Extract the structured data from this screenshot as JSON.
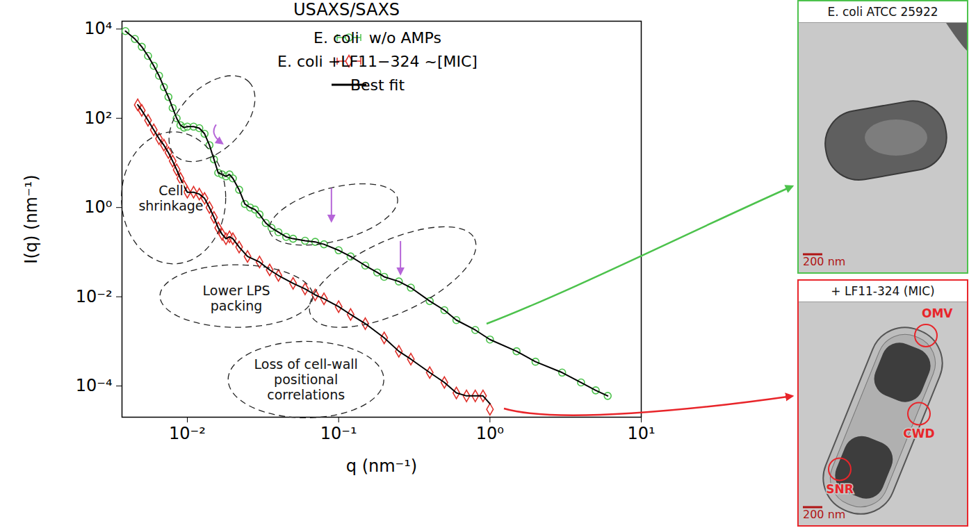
{
  "chart_data": {
    "type": "scatter",
    "title": "USAXS/SAXS",
    "x_label": "q (nm⁻¹)",
    "y_label": "I(q) (nm⁻¹)",
    "log": true,
    "grid": false,
    "legend": "upper right",
    "xlim": [
      0.0037,
      10
    ],
    "ylim": [
      2e-05,
      15000
    ],
    "xticks": [
      {
        "value": 0.01,
        "label": "10⁻²"
      },
      {
        "value": 0.1,
        "label": "10⁻¹"
      },
      {
        "value": 1,
        "label": "10⁰"
      },
      {
        "value": 10,
        "label": "10¹"
      }
    ],
    "yticks": [
      {
        "value": 0.0001,
        "label": "10⁻⁴"
      },
      {
        "value": 0.01,
        "label": "10⁻²"
      },
      {
        "value": 1,
        "label": "10⁰"
      },
      {
        "value": 100,
        "label": "10²"
      },
      {
        "value": 10000,
        "label": "10⁴"
      }
    ],
    "annotations": [
      "Cell shrinkage",
      "Lower LPS packing",
      "Loss of cell-wall positional correlations"
    ],
    "series": [
      {
        "name": "E. coli  w/o AMPs",
        "color": "#4cc24c",
        "type": "scatter",
        "marker": "circle",
        "x": [
          0.0039,
          0.0045,
          0.005,
          0.0055,
          0.006,
          0.0065,
          0.007,
          0.0075,
          0.008,
          0.0085,
          0.009,
          0.0095,
          0.01,
          0.011,
          0.012,
          0.013,
          0.014,
          0.015,
          0.016,
          0.017,
          0.018,
          0.019,
          0.02,
          0.022,
          0.024,
          0.026,
          0.028,
          0.03,
          0.033,
          0.036,
          0.04,
          0.045,
          0.05,
          0.06,
          0.07,
          0.08,
          0.1,
          0.12,
          0.15,
          0.18,
          0.2,
          0.25,
          0.3,
          0.4,
          0.5,
          0.6,
          0.8,
          1.0,
          1.5,
          2,
          3,
          4,
          5,
          6
        ],
        "values": [
          9000,
          6000,
          4000,
          2500,
          1500,
          900,
          500,
          300,
          170,
          100,
          70,
          62,
          65,
          65,
          60,
          45,
          25,
          12,
          6,
          5.5,
          5,
          5.5,
          4.5,
          2.5,
          1.2,
          1.0,
          0.9,
          0.7,
          0.45,
          0.35,
          0.28,
          0.22,
          0.2,
          0.18,
          0.17,
          0.15,
          0.11,
          0.08,
          0.05,
          0.035,
          0.028,
          0.022,
          0.016,
          0.008,
          0.005,
          0.003,
          0.0018,
          0.0011,
          0.0006,
          0.00035,
          0.0002,
          0.00012,
          8e-05,
          6e-05
        ]
      },
      {
        "name": "E. coli +LF11−324 ~[MIC]",
        "color": "#e0312b",
        "type": "scatter",
        "marker": "diamond",
        "x": [
          0.0047,
          0.005,
          0.0055,
          0.006,
          0.0065,
          0.007,
          0.0075,
          0.008,
          0.0085,
          0.009,
          0.0095,
          0.01,
          0.011,
          0.012,
          0.013,
          0.014,
          0.015,
          0.016,
          0.017,
          0.018,
          0.019,
          0.02,
          0.022,
          0.025,
          0.03,
          0.035,
          0.04,
          0.05,
          0.06,
          0.07,
          0.08,
          0.1,
          0.12,
          0.15,
          0.2,
          0.25,
          0.3,
          0.4,
          0.5,
          0.6,
          0.7,
          0.8,
          0.9,
          1.0
        ],
        "values": [
          200,
          150,
          90,
          55,
          35,
          25,
          17,
          11,
          7,
          4.5,
          3,
          2.2,
          2.2,
          2.0,
          1.6,
          1.0,
          0.6,
          0.35,
          0.25,
          0.2,
          0.22,
          0.2,
          0.13,
          0.08,
          0.06,
          0.04,
          0.03,
          0.02,
          0.015,
          0.011,
          0.009,
          0.006,
          0.004,
          0.0025,
          0.0012,
          0.0006,
          0.0004,
          0.0002,
          0.00012,
          7e-05,
          6e-05,
          6e-05,
          6e-05,
          3e-05
        ]
      },
      {
        "name": "Best fit",
        "color": "#000000",
        "type": "line",
        "line_style": "solid",
        "segments": [
          {
            "x": [
              0.0039,
              0.0045,
              0.005,
              0.0055,
              0.006,
              0.0065,
              0.007,
              0.0075,
              0.008,
              0.0085,
              0.009,
              0.0095,
              0.01,
              0.011,
              0.012,
              0.013,
              0.014,
              0.015,
              0.016,
              0.017,
              0.018,
              0.019,
              0.02,
              0.022,
              0.024,
              0.026,
              0.028,
              0.03,
              0.033,
              0.036,
              0.04,
              0.045,
              0.05,
              0.06,
              0.07,
              0.08,
              0.1,
              0.12,
              0.15,
              0.18,
              0.2,
              0.25,
              0.3,
              0.4,
              0.5,
              0.6,
              0.8,
              1.0,
              1.5,
              2,
              3,
              4,
              5,
              6
            ],
            "values": [
              9000,
              6000,
              4000,
              2500,
              1500,
              900,
              500,
              300,
              170,
              100,
              70,
              62,
              65,
              65,
              60,
              45,
              25,
              12,
              6,
              5.5,
              5,
              5.5,
              4.5,
              2.5,
              1.2,
              1.0,
              0.9,
              0.7,
              0.45,
              0.35,
              0.28,
              0.22,
              0.2,
              0.18,
              0.17,
              0.15,
              0.11,
              0.08,
              0.05,
              0.035,
              0.028,
              0.022,
              0.016,
              0.008,
              0.005,
              0.003,
              0.0018,
              0.0011,
              0.0006,
              0.00035,
              0.0002,
              0.00012,
              8e-05,
              6e-05
            ]
          },
          {
            "x": [
              0.0047,
              0.005,
              0.0055,
              0.006,
              0.0065,
              0.007,
              0.0075,
              0.008,
              0.0085,
              0.009,
              0.0095,
              0.01,
              0.011,
              0.012,
              0.013,
              0.014,
              0.015,
              0.016,
              0.017,
              0.018,
              0.019,
              0.02,
              0.022,
              0.025,
              0.03,
              0.035,
              0.04,
              0.05,
              0.06,
              0.07,
              0.08,
              0.1,
              0.12,
              0.15,
              0.2,
              0.25,
              0.3,
              0.4,
              0.5,
              0.6,
              0.7,
              0.8,
              0.9,
              1.0
            ],
            "values": [
              200,
              150,
              90,
              55,
              35,
              25,
              17,
              11,
              7,
              4.5,
              3,
              2.2,
              2.2,
              2.0,
              1.6,
              1.0,
              0.6,
              0.35,
              0.25,
              0.2,
              0.22,
              0.2,
              0.13,
              0.08,
              0.06,
              0.04,
              0.03,
              0.02,
              0.015,
              0.011,
              0.009,
              0.006,
              0.004,
              0.0025,
              0.0012,
              0.0006,
              0.0004,
              0.0002,
              0.00012,
              7e-05,
              6e-05,
              6e-05,
              6e-05,
              4e-05
            ]
          }
        ]
      }
    ]
  },
  "panels": [
    {
      "title": "E. coli ATCC 25922",
      "color": "#4cc24c",
      "scale_bar": "200 nm"
    },
    {
      "title": "+ LF11-324 (MIC)",
      "color": "#e8252a",
      "scale_bar": "200 nm",
      "labels": [
        "OMV",
        "CWD",
        "SNR"
      ]
    }
  ]
}
